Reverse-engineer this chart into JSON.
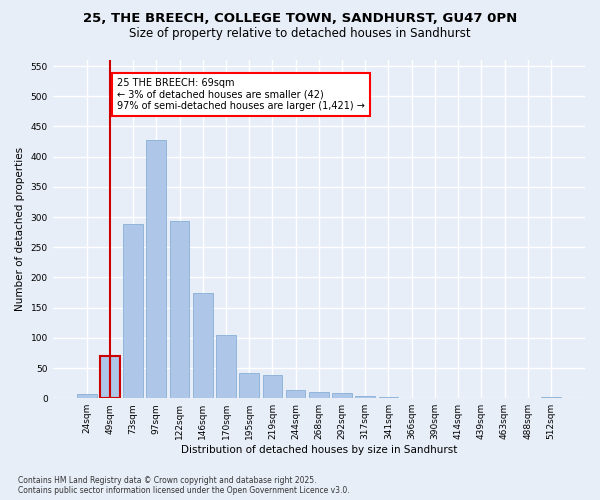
{
  "title_line1": "25, THE BREECH, COLLEGE TOWN, SANDHURST, GU47 0PN",
  "title_line2": "Size of property relative to detached houses in Sandhurst",
  "xlabel": "Distribution of detached houses by size in Sandhurst",
  "ylabel": "Number of detached properties",
  "categories": [
    "24sqm",
    "49sqm",
    "73sqm",
    "97sqm",
    "122sqm",
    "146sqm",
    "170sqm",
    "195sqm",
    "219sqm",
    "244sqm",
    "268sqm",
    "292sqm",
    "317sqm",
    "341sqm",
    "366sqm",
    "390sqm",
    "414sqm",
    "439sqm",
    "463sqm",
    "488sqm",
    "512sqm"
  ],
  "values": [
    7,
    70,
    288,
    428,
    293,
    175,
    105,
    42,
    38,
    14,
    10,
    8,
    3,
    2,
    0,
    1,
    0,
    0,
    0,
    0,
    2
  ],
  "bar_color": "#aec6e8",
  "bar_edge_color": "#7aa8d2",
  "highlight_bar_index": 1,
  "highlight_bar_edge_color": "#cc0000",
  "annotation_text": "25 THE BREECH: 69sqm\n← 3% of detached houses are smaller (42)\n97% of semi-detached houses are larger (1,421) →",
  "vline_color": "#cc0000",
  "ylim": [
    0,
    560
  ],
  "yticks": [
    0,
    50,
    100,
    150,
    200,
    250,
    300,
    350,
    400,
    450,
    500,
    550
  ],
  "background_color": "#e8eef8",
  "grid_color": "#ffffff",
  "footer_line1": "Contains HM Land Registry data © Crown copyright and database right 2025.",
  "footer_line2": "Contains public sector information licensed under the Open Government Licence v3.0.",
  "title_fontsize": 9.5,
  "subtitle_fontsize": 8.5,
  "axis_label_fontsize": 7.5,
  "tick_fontsize": 6.5,
  "annotation_fontsize": 7.0,
  "footer_fontsize": 5.5
}
